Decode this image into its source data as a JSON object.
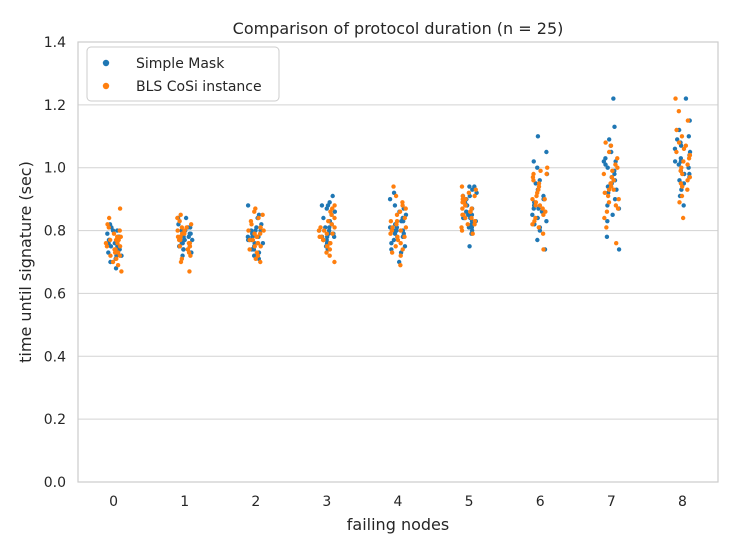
{
  "chart_data": {
    "type": "scatter",
    "title": "Comparison of protocol duration (n = 25)",
    "xlabel": "failing nodes",
    "ylabel": "time until signature (sec)",
    "categories": [
      "0",
      "1",
      "2",
      "3",
      "4",
      "5",
      "6",
      "7",
      "8"
    ],
    "yticks": [
      "0.0",
      "0.2",
      "0.4",
      "0.6",
      "0.8",
      "1.0",
      "1.2",
      "1.4"
    ],
    "ylim": [
      0.0,
      1.4
    ],
    "grid": "horizontal",
    "legend_position": "top-left",
    "series": [
      {
        "name": "Simple Mask",
        "color": "#1f77b4",
        "values": [
          [
            0.68,
            0.7,
            0.71,
            0.72,
            0.72,
            0.73,
            0.73,
            0.74,
            0.74,
            0.74,
            0.75,
            0.75,
            0.75,
            0.76,
            0.76,
            0.77,
            0.77,
            0.78,
            0.78,
            0.78,
            0.79,
            0.8,
            0.8,
            0.81,
            0.82
          ],
          [
            0.72,
            0.73,
            0.73,
            0.74,
            0.74,
            0.75,
            0.75,
            0.75,
            0.76,
            0.76,
            0.77,
            0.77,
            0.77,
            0.78,
            0.78,
            0.78,
            0.79,
            0.79,
            0.8,
            0.8,
            0.81,
            0.81,
            0.82,
            0.84,
            0.84
          ],
          [
            0.71,
            0.72,
            0.73,
            0.74,
            0.74,
            0.75,
            0.75,
            0.76,
            0.76,
            0.77,
            0.77,
            0.77,
            0.78,
            0.78,
            0.78,
            0.79,
            0.79,
            0.8,
            0.8,
            0.8,
            0.81,
            0.82,
            0.84,
            0.85,
            0.88
          ],
          [
            0.74,
            0.75,
            0.76,
            0.76,
            0.77,
            0.77,
            0.78,
            0.78,
            0.78,
            0.79,
            0.79,
            0.8,
            0.8,
            0.81,
            0.81,
            0.82,
            0.83,
            0.84,
            0.85,
            0.86,
            0.87,
            0.88,
            0.88,
            0.89,
            0.91
          ],
          [
            0.7,
            0.73,
            0.74,
            0.75,
            0.76,
            0.77,
            0.78,
            0.78,
            0.79,
            0.79,
            0.8,
            0.8,
            0.8,
            0.81,
            0.81,
            0.82,
            0.83,
            0.83,
            0.84,
            0.85,
            0.86,
            0.87,
            0.88,
            0.9,
            0.92
          ],
          [
            0.75,
            0.79,
            0.8,
            0.81,
            0.81,
            0.82,
            0.83,
            0.83,
            0.84,
            0.84,
            0.84,
            0.85,
            0.85,
            0.86,
            0.87,
            0.88,
            0.88,
            0.89,
            0.9,
            0.91,
            0.91,
            0.92,
            0.93,
            0.94,
            0.94
          ],
          [
            0.74,
            0.77,
            0.8,
            0.81,
            0.82,
            0.83,
            0.84,
            0.85,
            0.86,
            0.87,
            0.87,
            0.88,
            0.88,
            0.89,
            0.9,
            0.9,
            0.91,
            0.93,
            0.95,
            0.96,
            0.98,
            1.0,
            1.02,
            1.05,
            1.1
          ],
          [
            0.74,
            0.78,
            0.83,
            0.85,
            0.87,
            0.88,
            0.9,
            0.92,
            0.93,
            0.94,
            0.95,
            0.96,
            0.97,
            0.98,
            0.99,
            1.0,
            1.01,
            1.02,
            1.02,
            1.03,
            1.05,
            1.07,
            1.09,
            1.13,
            1.22
          ],
          [
            0.88,
            0.91,
            0.93,
            0.95,
            0.95,
            0.96,
            0.97,
            0.98,
            0.98,
            0.99,
            1.0,
            1.01,
            1.02,
            1.02,
            1.03,
            1.04,
            1.05,
            1.06,
            1.07,
            1.08,
            1.09,
            1.1,
            1.12,
            1.15,
            1.22
          ]
        ]
      },
      {
        "name": "BLS CoSi instance",
        "color": "#ff7f0e",
        "values": [
          [
            0.67,
            0.69,
            0.7,
            0.71,
            0.72,
            0.72,
            0.73,
            0.73,
            0.74,
            0.74,
            0.75,
            0.75,
            0.76,
            0.76,
            0.77,
            0.77,
            0.77,
            0.78,
            0.78,
            0.79,
            0.8,
            0.81,
            0.82,
            0.84,
            0.87
          ],
          [
            0.67,
            0.7,
            0.71,
            0.72,
            0.73,
            0.74,
            0.74,
            0.75,
            0.75,
            0.76,
            0.76,
            0.77,
            0.77,
            0.78,
            0.78,
            0.79,
            0.79,
            0.8,
            0.8,
            0.81,
            0.81,
            0.82,
            0.83,
            0.84,
            0.85
          ],
          [
            0.7,
            0.71,
            0.72,
            0.73,
            0.74,
            0.75,
            0.75,
            0.76,
            0.76,
            0.77,
            0.77,
            0.78,
            0.78,
            0.79,
            0.79,
            0.8,
            0.8,
            0.81,
            0.81,
            0.82,
            0.83,
            0.84,
            0.85,
            0.86,
            0.87
          ],
          [
            0.7,
            0.72,
            0.73,
            0.74,
            0.75,
            0.75,
            0.76,
            0.76,
            0.77,
            0.77,
            0.78,
            0.78,
            0.79,
            0.79,
            0.8,
            0.8,
            0.81,
            0.81,
            0.82,
            0.83,
            0.84,
            0.85,
            0.86,
            0.87,
            0.88
          ],
          [
            0.69,
            0.72,
            0.73,
            0.74,
            0.75,
            0.76,
            0.77,
            0.78,
            0.78,
            0.79,
            0.8,
            0.8,
            0.81,
            0.81,
            0.82,
            0.83,
            0.83,
            0.84,
            0.85,
            0.86,
            0.87,
            0.88,
            0.89,
            0.91,
            0.94
          ],
          [
            0.79,
            0.8,
            0.81,
            0.82,
            0.82,
            0.83,
            0.84,
            0.84,
            0.85,
            0.85,
            0.86,
            0.86,
            0.87,
            0.87,
            0.88,
            0.88,
            0.89,
            0.89,
            0.9,
            0.9,
            0.91,
            0.91,
            0.92,
            0.93,
            0.94
          ],
          [
            0.74,
            0.79,
            0.81,
            0.82,
            0.83,
            0.84,
            0.85,
            0.86,
            0.87,
            0.88,
            0.88,
            0.89,
            0.9,
            0.9,
            0.91,
            0.92,
            0.93,
            0.94,
            0.95,
            0.96,
            0.97,
            0.98,
            0.98,
            0.99,
            1.0
          ],
          [
            0.76,
            0.81,
            0.84,
            0.86,
            0.87,
            0.88,
            0.89,
            0.9,
            0.91,
            0.92,
            0.93,
            0.93,
            0.94,
            0.95,
            0.95,
            0.96,
            0.97,
            0.98,
            0.99,
            1.0,
            1.01,
            1.03,
            1.05,
            1.07,
            1.08
          ],
          [
            0.84,
            0.89,
            0.91,
            0.93,
            0.94,
            0.95,
            0.96,
            0.97,
            0.98,
            0.99,
            1.0,
            1.01,
            1.02,
            1.03,
            1.04,
            1.04,
            1.05,
            1.06,
            1.07,
            1.08,
            1.1,
            1.12,
            1.15,
            1.18,
            1.22
          ]
        ]
      }
    ]
  }
}
